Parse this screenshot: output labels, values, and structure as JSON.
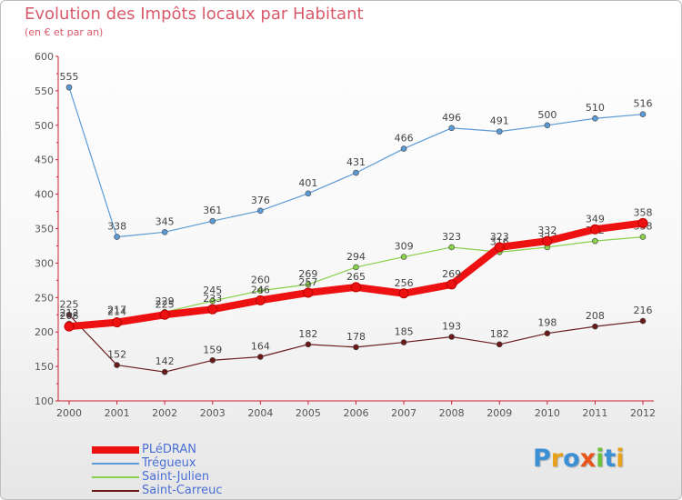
{
  "header": {
    "title": "Evolution des Impôts locaux par Habitant",
    "subtitle": "(en € et par an)"
  },
  "logo": {
    "text": "Proxiti"
  },
  "chart_data": {
    "type": "line",
    "title": "Evolution des Impôts locaux par Habitant",
    "subtitle": "(en € et par an)",
    "xlabel": "",
    "ylabel": "",
    "ylim": [
      100,
      600
    ],
    "yticks": [
      100,
      150,
      200,
      250,
      300,
      350,
      400,
      450,
      500,
      550,
      600
    ],
    "grid": false,
    "legend_position": "bottom-left",
    "x": [
      2000,
      2001,
      2002,
      2003,
      2004,
      2005,
      2006,
      2007,
      2008,
      2009,
      2010,
      2011,
      2012
    ],
    "series": [
      {
        "name": "Saint-Carreuc",
        "color": "#6b1a1a",
        "values": [
          225,
          152,
          142,
          159,
          164,
          182,
          178,
          185,
          193,
          182,
          198,
          208,
          216
        ]
      },
      {
        "name": "Saint-Julien",
        "color": "#88d04a",
        "values": [
          212,
          217,
          229,
          245,
          260,
          269,
          294,
          309,
          323,
          316,
          323,
          332,
          338
        ]
      },
      {
        "name": "Trégueux",
        "color": "#5b9bd5",
        "values": [
          555,
          338,
          345,
          361,
          376,
          401,
          431,
          466,
          496,
          491,
          500,
          510,
          516
        ]
      },
      {
        "name": "PLéDRAN",
        "color": "#ee1111",
        "values": [
          208,
          214,
          225,
          233,
          246,
          257,
          265,
          256,
          269,
          323,
          332,
          349,
          358
        ]
      }
    ],
    "legend_order": [
      "PLéDRAN",
      "Trégueux",
      "Saint-Julien",
      "Saint-Carreuc"
    ]
  }
}
